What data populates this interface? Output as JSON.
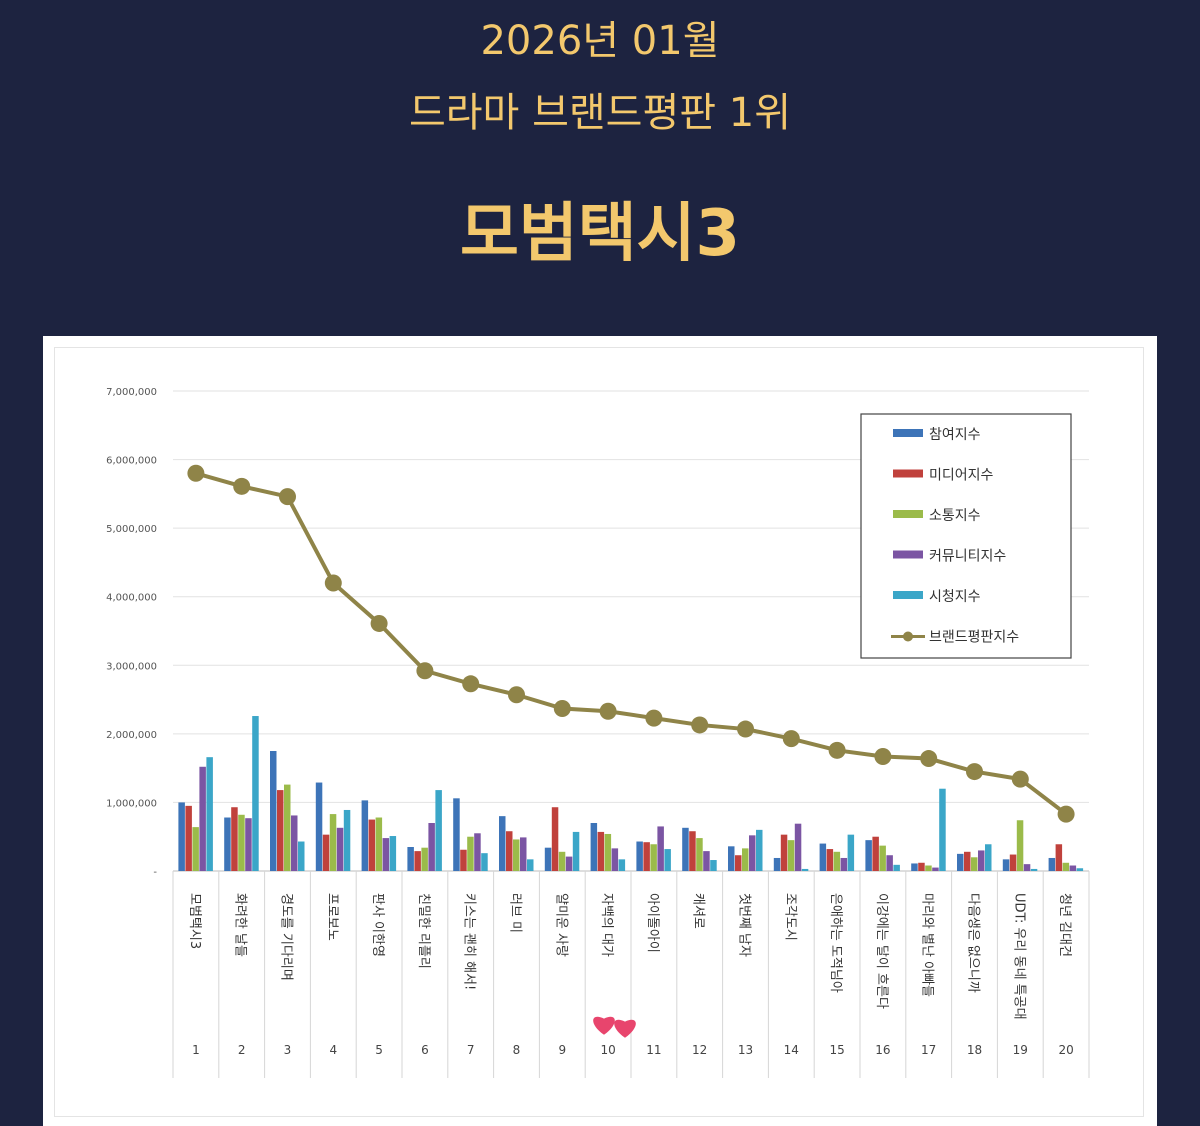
{
  "header": {
    "date": "2026년 01월",
    "subtitle": "드라마 브랜드평판 1위",
    "winner": "모범택시3"
  },
  "colors": {
    "background": "#1d2340",
    "header_text": "#f3c86d",
    "heart": "#e8456d"
  },
  "chart_data": {
    "type": "bar",
    "ylim": [
      0,
      7000000
    ],
    "yticks": [
      "-",
      "1,000,000",
      "2,000,000",
      "3,000,000",
      "4,000,000",
      "5,000,000",
      "6,000,000",
      "7,000,000"
    ],
    "grid": true,
    "legend_position": "top-right",
    "ranks": [
      "1",
      "2",
      "3",
      "4",
      "5",
      "6",
      "7",
      "8",
      "9",
      "10",
      "11",
      "12",
      "13",
      "14",
      "15",
      "16",
      "17",
      "18",
      "19",
      "20"
    ],
    "categories": [
      "모범택시3",
      "화려한 날들",
      "경도를 기다리며",
      "프로보노",
      "판사 이한영",
      "친밀한 리플리",
      "키스는 괜히 해서!",
      "러브 미",
      "얄미운 사랑",
      "자백의 대가",
      "아이돌아이",
      "캐셔로",
      "첫번째 남자",
      "조각도시",
      "은애하는 도적님아",
      "이강에는 달이 흐른다",
      "마리와 별난 아빠들",
      "다음생은 없으니까",
      "UDT: 우리 동네 특공대",
      "청년 김대건"
    ],
    "series": [
      {
        "name": "참여지수",
        "type": "bar",
        "color": "#3d74b8",
        "values": [
          1000000,
          780000,
          1750000,
          1290000,
          1030000,
          350000,
          1060000,
          800000,
          340000,
          700000,
          430000,
          630000,
          360000,
          190000,
          400000,
          450000,
          110000,
          250000,
          170000,
          190000
        ]
      },
      {
        "name": "미디어지수",
        "type": "bar",
        "color": "#c0413c",
        "values": [
          950000,
          930000,
          1180000,
          530000,
          750000,
          290000,
          310000,
          580000,
          930000,
          570000,
          420000,
          580000,
          230000,
          530000,
          320000,
          500000,
          120000,
          280000,
          240000,
          390000
        ]
      },
      {
        "name": "소통지수",
        "type": "bar",
        "color": "#9bbb4a",
        "values": [
          640000,
          820000,
          1260000,
          830000,
          780000,
          340000,
          500000,
          460000,
          280000,
          540000,
          390000,
          480000,
          330000,
          450000,
          280000,
          370000,
          80000,
          200000,
          740000,
          120000
        ]
      },
      {
        "name": "커뮤니티지수",
        "type": "bar",
        "color": "#7b55a3",
        "values": [
          1520000,
          770000,
          810000,
          630000,
          480000,
          700000,
          550000,
          490000,
          210000,
          330000,
          650000,
          290000,
          520000,
          690000,
          190000,
          230000,
          50000,
          300000,
          100000,
          80000
        ]
      },
      {
        "name": "시청지수",
        "type": "bar",
        "color": "#3ba6c8",
        "values": [
          1660000,
          2260000,
          430000,
          890000,
          510000,
          1180000,
          260000,
          170000,
          570000,
          170000,
          320000,
          160000,
          600000,
          30000,
          530000,
          90000,
          1200000,
          390000,
          30000,
          40000
        ]
      },
      {
        "name": "브랜드평판지수",
        "type": "line",
        "color": "#8f8448",
        "values": [
          5800000,
          5610000,
          5460000,
          4200000,
          3610000,
          2920000,
          2730000,
          2570000,
          2370000,
          2330000,
          2230000,
          2130000,
          2070000,
          1930000,
          1760000,
          1670000,
          1640000,
          1450000,
          1340000,
          830000
        ]
      }
    ]
  }
}
